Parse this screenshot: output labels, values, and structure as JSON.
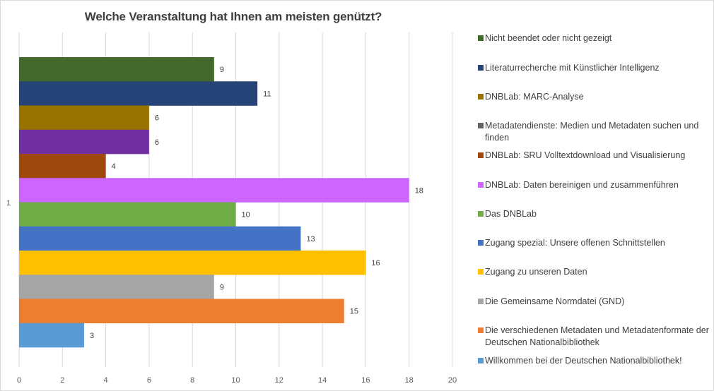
{
  "chart_data": {
    "type": "bar",
    "orientation": "horizontal",
    "title": "Welche Veranstaltung hat Ihnen am meisten genützt?",
    "xlabel": "",
    "ylabel": "",
    "categories": [
      "1"
    ],
    "xlim": [
      0,
      20
    ],
    "x_ticks": [
      "0",
      "2",
      "4",
      "6",
      "8",
      "10",
      "12",
      "14",
      "16",
      "18",
      "20"
    ],
    "grid": true,
    "legend_position": "right",
    "series": [
      {
        "name": "Nicht beendet oder nicht gezeigt",
        "values": [
          9
        ],
        "color": "#43682B",
        "legend_color": "#43682B"
      },
      {
        "name": "Literaturrecherche mit Künstlicher Intelligenz",
        "values": [
          11
        ],
        "color": "#264478",
        "legend_color": "#264478"
      },
      {
        "name": "DNBLab: MARC-Analyse",
        "values": [
          6
        ],
        "color": "#997300",
        "legend_color": "#997300"
      },
      {
        "name": "Metadatendienste: Medien und Metadaten suchen und finden",
        "values": [
          6
        ],
        "color": "#7030A0",
        "legend_color": "#636363"
      },
      {
        "name": "DNBLab: SRU Volltextdownload und Visualisierung",
        "values": [
          4
        ],
        "color": "#9E480E",
        "legend_color": "#9E480E"
      },
      {
        "name": "DNBLab: Daten bereinigen und zusammenführen",
        "values": [
          18
        ],
        "color": "#CC66FF",
        "legend_color": "#CC66FF"
      },
      {
        "name": "Das DNBLab",
        "values": [
          10
        ],
        "color": "#70AD47",
        "legend_color": "#70AD47"
      },
      {
        "name": "Zugang spezial: Unsere offenen Schnittstellen",
        "values": [
          13
        ],
        "color": "#4472C4",
        "legend_color": "#4472C4"
      },
      {
        "name": "Zugang zu unseren Daten",
        "values": [
          16
        ],
        "color": "#FFC000",
        "legend_color": "#FFC000"
      },
      {
        "name": "Die Gemeinsame Normdatei (GND)",
        "values": [
          9
        ],
        "color": "#A5A5A5",
        "legend_color": "#A5A5A5"
      },
      {
        "name": "Die verschiedenen Metadaten und Metadatenformate der Deutschen Nationalbibliothek",
        "values": [
          15
        ],
        "color": "#ED7D31",
        "legend_color": "#ED7D31"
      },
      {
        "name": "Willkommen bei der Deutschen Nationalbibliothek!",
        "values": [
          3
        ],
        "color": "#5B9BD5",
        "legend_color": "#5B9BD5"
      }
    ]
  }
}
